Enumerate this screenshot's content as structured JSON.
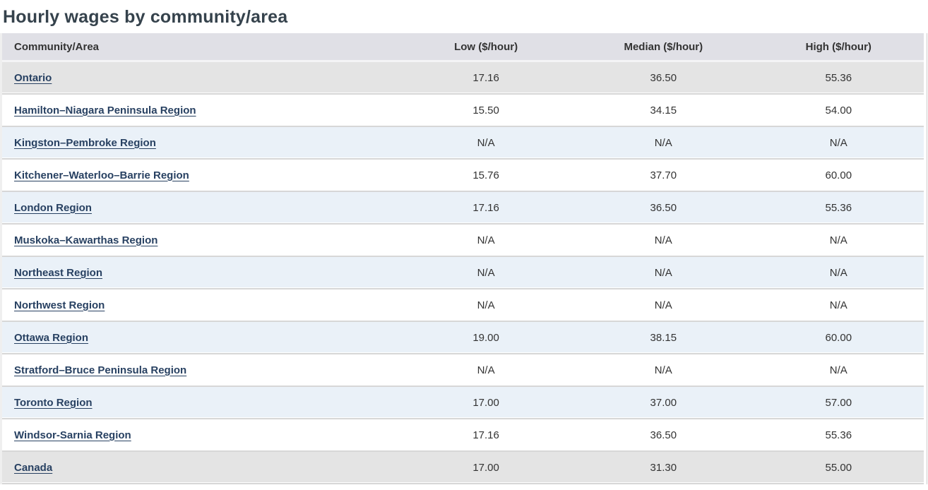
{
  "page": {
    "title": "Hourly wages by community/area"
  },
  "table": {
    "columns": {
      "community": "Community/Area",
      "low": "Low ($/hour)",
      "median": "Median ($/hour)",
      "high": "High ($/hour)"
    },
    "rows": [
      {
        "name": "Ontario",
        "low": "17.16",
        "median": "36.50",
        "high": "55.36",
        "shade": "gray"
      },
      {
        "name": "Hamilton–Niagara Peninsula Region",
        "low": "15.50",
        "median": "34.15",
        "high": "54.00",
        "shade": "white"
      },
      {
        "name": "Kingston–Pembroke Region",
        "low": "N/A",
        "median": "N/A",
        "high": "N/A",
        "shade": "blue"
      },
      {
        "name": "Kitchener–Waterloo–Barrie Region",
        "low": "15.76",
        "median": "37.70",
        "high": "60.00",
        "shade": "white"
      },
      {
        "name": "London Region",
        "low": "17.16",
        "median": "36.50",
        "high": "55.36",
        "shade": "blue"
      },
      {
        "name": "Muskoka–Kawarthas Region",
        "low": "N/A",
        "median": "N/A",
        "high": "N/A",
        "shade": "white"
      },
      {
        "name": "Northeast Region",
        "low": "N/A",
        "median": "N/A",
        "high": "N/A",
        "shade": "blue"
      },
      {
        "name": "Northwest Region",
        "low": "N/A",
        "median": "N/A",
        "high": "N/A",
        "shade": "white"
      },
      {
        "name": "Ottawa Region",
        "low": "19.00",
        "median": "38.15",
        "high": "60.00",
        "shade": "blue"
      },
      {
        "name": "Stratford–Bruce Peninsula Region",
        "low": "N/A",
        "median": "N/A",
        "high": "N/A",
        "shade": "white"
      },
      {
        "name": "Toronto Region",
        "low": "17.00",
        "median": "37.00",
        "high": "57.00",
        "shade": "blue"
      },
      {
        "name": "Windsor-Sarnia Region",
        "low": "17.16",
        "median": "36.50",
        "high": "55.36",
        "shade": "white"
      },
      {
        "name": "Canada",
        "low": "17.00",
        "median": "31.30",
        "high": "55.00",
        "shade": "gray"
      }
    ]
  },
  "colors": {
    "title": "#35424c",
    "link": "#284162",
    "header_bg": "#e0e0e6",
    "row_gray": "#e4e4e4",
    "row_blue": "#eaf1f8"
  }
}
